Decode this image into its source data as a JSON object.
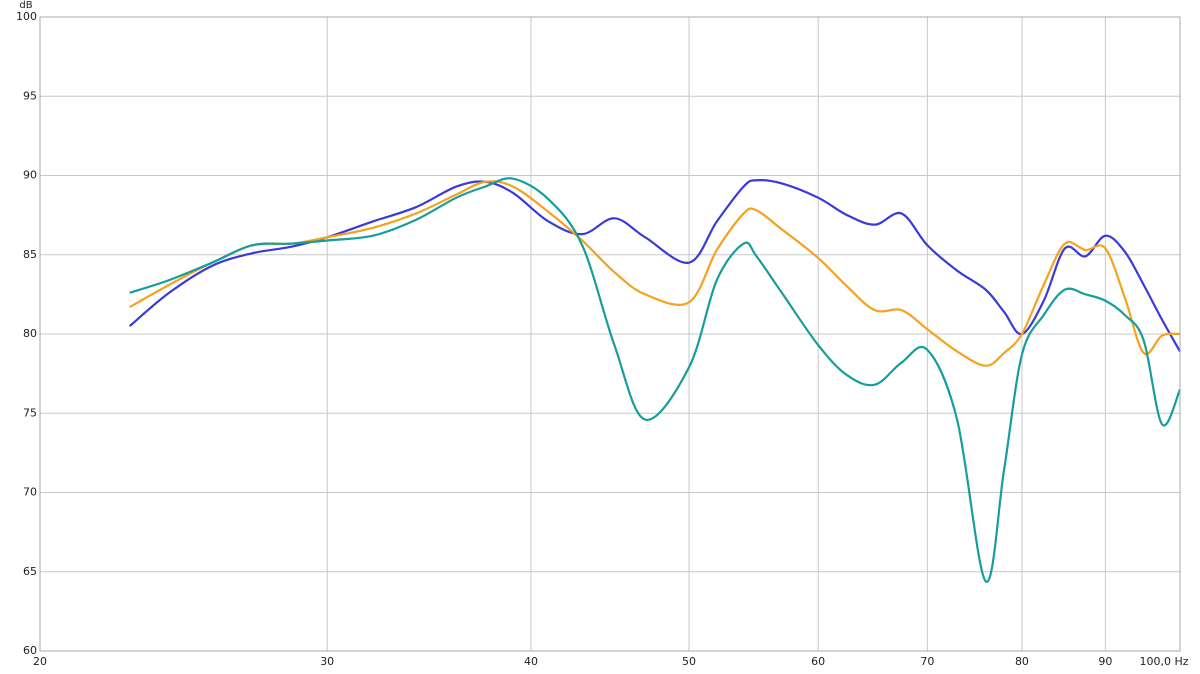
{
  "chart_data": {
    "type": "line",
    "y_label": "dB",
    "log_x": true,
    "grid": true,
    "x": [
      22.7,
      24,
      25.5,
      27,
      28.5,
      30,
      32,
      34,
      36,
      37.5,
      39,
      41,
      43,
      45,
      47,
      50,
      52,
      54,
      55,
      57,
      60,
      62.5,
      65,
      67.5,
      70,
      73,
      76,
      78,
      80,
      82.5,
      85,
      87.5,
      90,
      92.5,
      95,
      97.5,
      100
    ],
    "series": [
      {
        "color": "#3a3ad8",
        "values": [
          80.5,
          82.6,
          84.3,
          85.1,
          85.5,
          86.1,
          87.1,
          88.0,
          89.3,
          89.6,
          88.9,
          87.1,
          86.3,
          87.3,
          86.1,
          84.5,
          87.1,
          89.3,
          89.7,
          89.5,
          88.6,
          87.5,
          86.9,
          87.6,
          85.6,
          84.0,
          82.8,
          81.4,
          80.0,
          82.1,
          85.4,
          84.9,
          86.2,
          85.2,
          83.1,
          80.9,
          78.9
        ]
      },
      {
        "color": "#f5a21e",
        "values": [
          81.7,
          83.1,
          84.5,
          85.6,
          85.7,
          86.1,
          86.7,
          87.6,
          88.8,
          89.6,
          89.3,
          87.7,
          85.9,
          83.9,
          82.5,
          82.0,
          85.3,
          87.6,
          87.8,
          86.6,
          84.8,
          83.0,
          81.5,
          81.5,
          80.3,
          78.9,
          78.0,
          78.8,
          80.0,
          83.1,
          85.7,
          85.3,
          85.4,
          82.3,
          78.8,
          79.9,
          80.0
        ]
      },
      {
        "color": "#179d9b",
        "values": [
          82.6,
          83.4,
          84.5,
          85.6,
          85.7,
          85.9,
          86.2,
          87.2,
          88.6,
          89.3,
          89.8,
          88.5,
          85.6,
          79.3,
          74.6,
          77.9,
          83.4,
          85.7,
          84.9,
          82.6,
          79.3,
          77.4,
          76.8,
          78.2,
          79.0,
          74.6,
          64.4,
          71.4,
          78.7,
          81.2,
          82.8,
          82.5,
          82.1,
          81.2,
          79.6,
          74.3,
          76.5
        ]
      }
    ],
    "xlim": [
      20,
      100
    ],
    "xticks": [
      20,
      30,
      40,
      50,
      60,
      70,
      80,
      90,
      {
        "value": 100,
        "label": "100,0 Hz"
      }
    ],
    "ylim": [
      60,
      100
    ],
    "yticks": [
      60,
      65,
      70,
      75,
      80,
      85,
      90,
      95,
      100
    ]
  }
}
